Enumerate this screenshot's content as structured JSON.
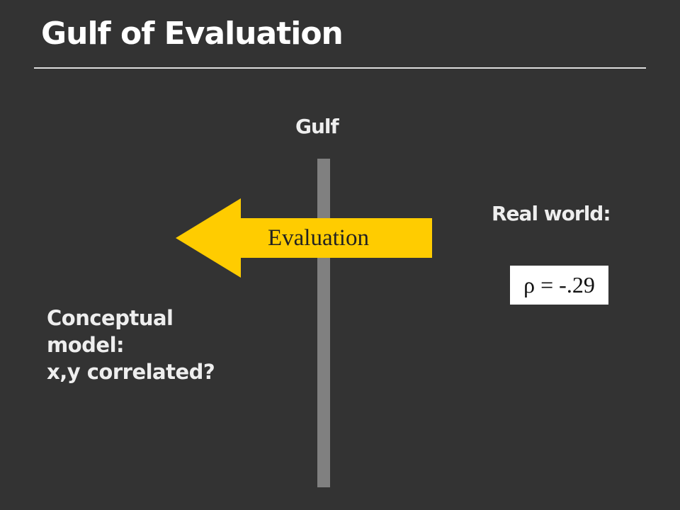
{
  "title": "Gulf of Evaluation",
  "gulf_label": "Gulf",
  "arrow_label": "Evaluation",
  "arrow_color": "#FFCC00",
  "real_world_label": "Real world:",
  "rho_value": "ρ = -.29",
  "conceptual_model": [
    "Conceptual",
    "model:",
    "x,y correlated?"
  ]
}
